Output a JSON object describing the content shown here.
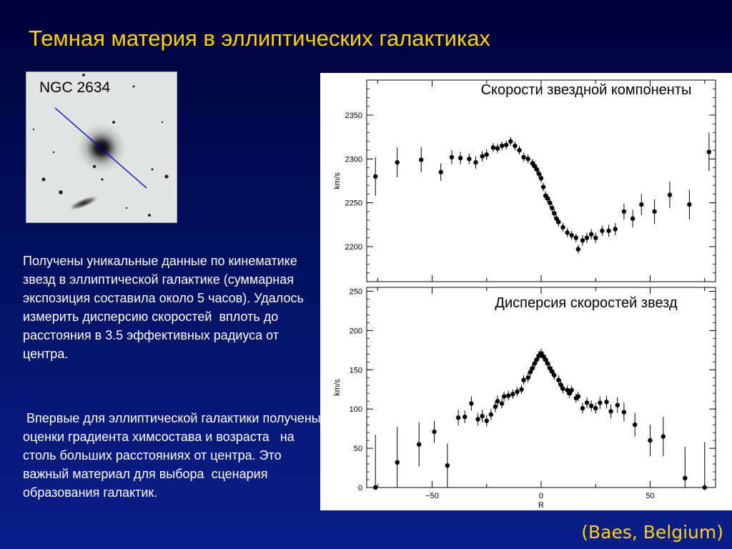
{
  "slide": {
    "title": "Темная материя в эллиптических галактиках",
    "galaxy_label": "NGC 2634",
    "paragraph1": "Получены уникальные данные по кинематике звезд в эллиптической галактике (суммарная экспозиция составила около 5 часов). Удалось измерить дисперсию скоростей  вплоть до расстояния в 3.5 эффективных радиуса от центра.",
    "paragraph2": " Впервые для эллиптической галактики получены оценки градиента химсостава и возраста   на столь больших расстояниях от центра. Это важный материал для выбора  сценария образования галактик.",
    "credit": "(Baes, Belgium)",
    "colors": {
      "title": "#ffd400",
      "text": "#ffffff",
      "credit": "#ffd400",
      "background_top": "#00003a",
      "background_bottom": "#0a1f8c"
    }
  },
  "chart_data": [
    {
      "type": "scatter",
      "title": "Скорости звездной компоненты",
      "xlabel": "",
      "ylabel": "km/s",
      "xlim": [
        -80,
        80
      ],
      "ylim": [
        2160,
        2390
      ],
      "yticks": [
        2200,
        2250,
        2300,
        2350
      ],
      "error_bars": true,
      "points": [
        {
          "x": -76,
          "y": 2280,
          "err": 22
        },
        {
          "x": -66,
          "y": 2296,
          "err": 17
        },
        {
          "x": -55,
          "y": 2299,
          "err": 14
        },
        {
          "x": -46,
          "y": 2285,
          "err": 10
        },
        {
          "x": -41,
          "y": 2302,
          "err": 8
        },
        {
          "x": -37,
          "y": 2301,
          "err": 7
        },
        {
          "x": -33,
          "y": 2300,
          "err": 6
        },
        {
          "x": -30,
          "y": 2296,
          "err": 7
        },
        {
          "x": -27,
          "y": 2303,
          "err": 6
        },
        {
          "x": -25,
          "y": 2305,
          "err": 6
        },
        {
          "x": -22,
          "y": 2313,
          "err": 5
        },
        {
          "x": -20,
          "y": 2312,
          "err": 5
        },
        {
          "x": -18,
          "y": 2315,
          "err": 5
        },
        {
          "x": -16,
          "y": 2316,
          "err": 5
        },
        {
          "x": -14,
          "y": 2320,
          "err": 5
        },
        {
          "x": -12,
          "y": 2315,
          "err": 5
        },
        {
          "x": -10,
          "y": 2310,
          "err": 5
        },
        {
          "x": -8,
          "y": 2302,
          "err": 5
        },
        {
          "x": -6,
          "y": 2300,
          "err": 5
        },
        {
          "x": -4,
          "y": 2295,
          "err": 5
        },
        {
          "x": -3,
          "y": 2292,
          "err": 5
        },
        {
          "x": -2,
          "y": 2288,
          "err": 5
        },
        {
          "x": -1,
          "y": 2283,
          "err": 5
        },
        {
          "x": 0,
          "y": 2278,
          "err": 5
        },
        {
          "x": 1,
          "y": 2268,
          "err": 5
        },
        {
          "x": 2,
          "y": 2258,
          "err": 5
        },
        {
          "x": 3,
          "y": 2255,
          "err": 5
        },
        {
          "x": 4,
          "y": 2250,
          "err": 5
        },
        {
          "x": 5,
          "y": 2244,
          "err": 5
        },
        {
          "x": 6,
          "y": 2238,
          "err": 5
        },
        {
          "x": 7,
          "y": 2232,
          "err": 5
        },
        {
          "x": 8,
          "y": 2228,
          "err": 5
        },
        {
          "x": 10,
          "y": 2222,
          "err": 5
        },
        {
          "x": 12,
          "y": 2216,
          "err": 5
        },
        {
          "x": 14,
          "y": 2213,
          "err": 5
        },
        {
          "x": 16,
          "y": 2210,
          "err": 5
        },
        {
          "x": 17,
          "y": 2197,
          "err": 5
        },
        {
          "x": 19,
          "y": 2207,
          "err": 6
        },
        {
          "x": 21,
          "y": 2210,
          "err": 6
        },
        {
          "x": 23,
          "y": 2214,
          "err": 6
        },
        {
          "x": 25,
          "y": 2210,
          "err": 6
        },
        {
          "x": 28,
          "y": 2218,
          "err": 6
        },
        {
          "x": 31,
          "y": 2218,
          "err": 7
        },
        {
          "x": 34,
          "y": 2220,
          "err": 7
        },
        {
          "x": 38,
          "y": 2240,
          "err": 9
        },
        {
          "x": 42,
          "y": 2232,
          "err": 10
        },
        {
          "x": 46,
          "y": 2248,
          "err": 12
        },
        {
          "x": 52,
          "y": 2240,
          "err": 14
        },
        {
          "x": 59,
          "y": 2259,
          "err": 15
        },
        {
          "x": 68,
          "y": 2248,
          "err": 17
        },
        {
          "x": 77,
          "y": 2308,
          "err": 22
        }
      ]
    },
    {
      "type": "scatter",
      "title": "Дисперсия скоростей звезд",
      "xlabel": "R",
      "ylabel": "km/s",
      "xlim": [
        -80,
        80
      ],
      "ylim": [
        0,
        255
      ],
      "yticks": [
        0,
        50,
        100,
        150,
        200,
        250
      ],
      "xticks": [
        -50,
        0,
        50
      ],
      "error_bars": true,
      "points": [
        {
          "x": -76,
          "y": -3,
          "err": 70
        },
        {
          "x": -66,
          "y": 32,
          "err": 45
        },
        {
          "x": -56,
          "y": 55,
          "err": 28
        },
        {
          "x": -49,
          "y": 71,
          "err": 14
        },
        {
          "x": -43,
          "y": 28,
          "err": 28
        },
        {
          "x": -38,
          "y": 89,
          "err": 10
        },
        {
          "x": -35,
          "y": 90,
          "err": 8
        },
        {
          "x": -32,
          "y": 107,
          "err": 9
        },
        {
          "x": -29,
          "y": 87,
          "err": 8
        },
        {
          "x": -27,
          "y": 91,
          "err": 8
        },
        {
          "x": -25,
          "y": 85,
          "err": 7
        },
        {
          "x": -23,
          "y": 93,
          "err": 7
        },
        {
          "x": -21,
          "y": 103,
          "err": 7
        },
        {
          "x": -20,
          "y": 110,
          "err": 7
        },
        {
          "x": -18,
          "y": 107,
          "err": 6
        },
        {
          "x": -17,
          "y": 116,
          "err": 6
        },
        {
          "x": -15,
          "y": 117,
          "err": 6
        },
        {
          "x": -13,
          "y": 119,
          "err": 6
        },
        {
          "x": -11,
          "y": 122,
          "err": 6
        },
        {
          "x": -9,
          "y": 125,
          "err": 6
        },
        {
          "x": -8,
          "y": 137,
          "err": 6
        },
        {
          "x": -6,
          "y": 140,
          "err": 6
        },
        {
          "x": -5,
          "y": 147,
          "err": 6
        },
        {
          "x": -4,
          "y": 152,
          "err": 6
        },
        {
          "x": -3,
          "y": 158,
          "err": 6
        },
        {
          "x": -2,
          "y": 163,
          "err": 6
        },
        {
          "x": -1,
          "y": 168,
          "err": 6
        },
        {
          "x": 0,
          "y": 171,
          "err": 6
        },
        {
          "x": 1,
          "y": 167,
          "err": 6
        },
        {
          "x": 2,
          "y": 163,
          "err": 6
        },
        {
          "x": 3,
          "y": 158,
          "err": 6
        },
        {
          "x": 4,
          "y": 152,
          "err": 6
        },
        {
          "x": 5,
          "y": 148,
          "err": 6
        },
        {
          "x": 6,
          "y": 143,
          "err": 6
        },
        {
          "x": 8,
          "y": 137,
          "err": 6
        },
        {
          "x": 9,
          "y": 131,
          "err": 6
        },
        {
          "x": 10,
          "y": 126,
          "err": 6
        },
        {
          "x": 12,
          "y": 124,
          "err": 6
        },
        {
          "x": 13,
          "y": 120,
          "err": 6
        },
        {
          "x": 14,
          "y": 124,
          "err": 6
        },
        {
          "x": 16,
          "y": 114,
          "err": 6
        },
        {
          "x": 17,
          "y": 116,
          "err": 6
        },
        {
          "x": 19,
          "y": 101,
          "err": 7
        },
        {
          "x": 21,
          "y": 108,
          "err": 7
        },
        {
          "x": 23,
          "y": 104,
          "err": 7
        },
        {
          "x": 25,
          "y": 101,
          "err": 7
        },
        {
          "x": 27,
          "y": 108,
          "err": 8
        },
        {
          "x": 30,
          "y": 109,
          "err": 8
        },
        {
          "x": 32,
          "y": 97,
          "err": 9
        },
        {
          "x": 35,
          "y": 105,
          "err": 10
        },
        {
          "x": 38,
          "y": 96,
          "err": 12
        },
        {
          "x": 43,
          "y": 80,
          "err": 15
        },
        {
          "x": 50,
          "y": 60,
          "err": 20
        },
        {
          "x": 56,
          "y": 65,
          "err": 25
        },
        {
          "x": 66,
          "y": 12,
          "err": 40
        },
        {
          "x": 75,
          "y": -2,
          "err": 60
        }
      ]
    }
  ]
}
